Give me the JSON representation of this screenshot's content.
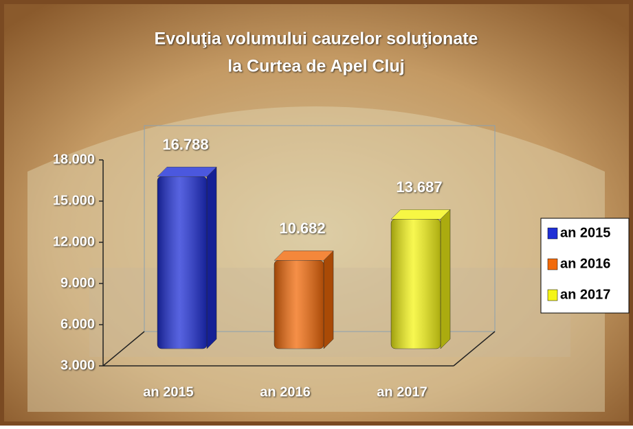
{
  "chart_data": {
    "type": "bar3d",
    "title": [
      "Evoluţia volumului cauzelor soluţionate",
      "la  Curtea de Apel Cluj"
    ],
    "categories": [
      "an 2015",
      "an 2016",
      "an 2017"
    ],
    "series": [
      {
        "name": "an 2015",
        "color": "#1f2fd6",
        "values": [
          16788,
          null,
          null
        ],
        "value_labels": [
          "16.788",
          null,
          null
        ]
      },
      {
        "name": "an 2016",
        "color": "#f26a0a",
        "values": [
          null,
          10682,
          null
        ],
        "value_labels": [
          null,
          "10.682",
          null
        ]
      },
      {
        "name": "an 2017",
        "color": "#f5f516",
        "values": [
          null,
          null,
          13687
        ],
        "value_labels": [
          null,
          null,
          "13.687"
        ]
      }
    ],
    "ylim": [
      3000,
      18000
    ],
    "yticks": [
      {
        "value": 3000,
        "label": "3.000"
      },
      {
        "value": 6000,
        "label": "6.000"
      },
      {
        "value": 9000,
        "label": "9.000"
      },
      {
        "value": 12000,
        "label": "12.000"
      },
      {
        "value": 15000,
        "label": "15.000"
      },
      {
        "value": 18000,
        "label": "18.000"
      }
    ],
    "legend": "right"
  }
}
